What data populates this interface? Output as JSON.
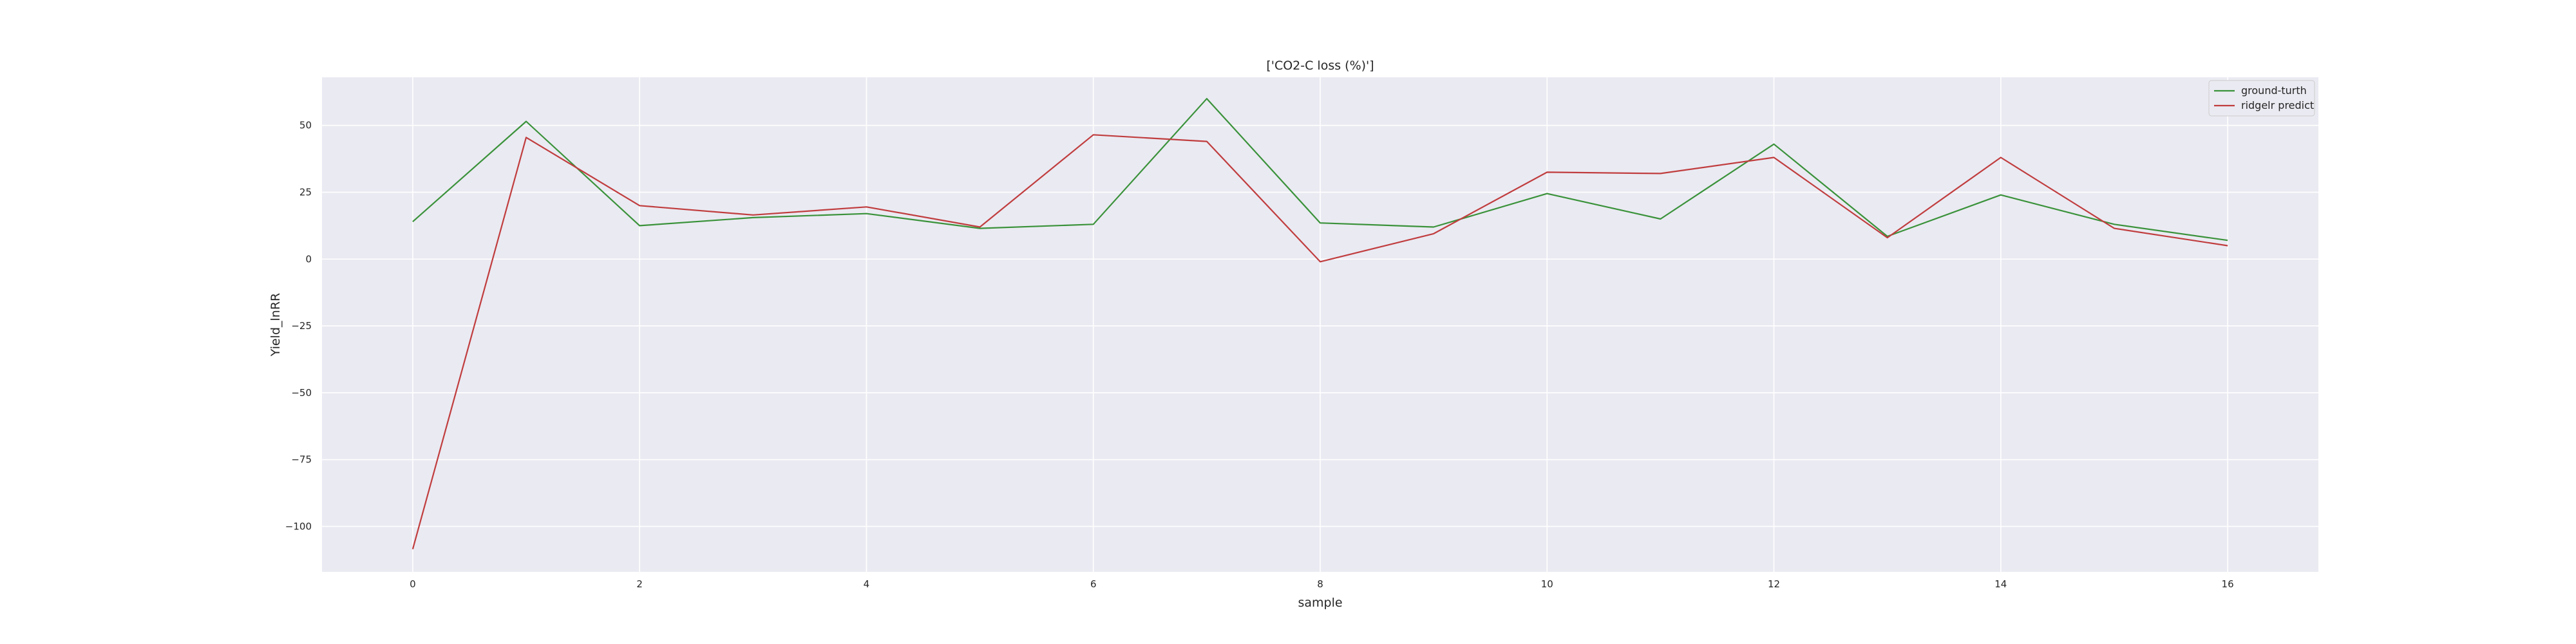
{
  "chart_data": {
    "type": "line",
    "title": "['CO2-C loss (%)']",
    "xlabel": "sample",
    "ylabel": "Yield_lnRR",
    "x": [
      0,
      1,
      2,
      3,
      4,
      5,
      6,
      7,
      8,
      9,
      10,
      11,
      12,
      13,
      14,
      15,
      16
    ],
    "xlim": [
      -0.8,
      16.8
    ],
    "ylim": [
      -117,
      68
    ],
    "xticks": [
      0,
      2,
      4,
      6,
      8,
      10,
      12,
      14,
      16
    ],
    "yticks": [
      50,
      25,
      0,
      -25,
      -50,
      -75,
      -100
    ],
    "ytick_labels": [
      "50",
      "25",
      "0",
      "−25",
      "−50",
      "−75",
      "−100"
    ],
    "grid": true,
    "legend": "top-right",
    "background": "#eaeaf2",
    "series": [
      {
        "name": "ground-turth",
        "color": "#3a923a",
        "values": [
          14,
          51.5,
          12.5,
          15.5,
          17,
          11.5,
          13,
          60,
          13.5,
          12,
          24.5,
          15,
          43,
          8.5,
          24,
          13,
          7
        ]
      },
      {
        "name": "ridgelr predict",
        "color": "#c03d3e",
        "values": [
          -108.5,
          45.5,
          20,
          16.5,
          19.5,
          12,
          46.5,
          44,
          -1,
          9.5,
          32.5,
          32,
          38,
          8,
          38,
          11.5,
          5
        ]
      }
    ]
  }
}
